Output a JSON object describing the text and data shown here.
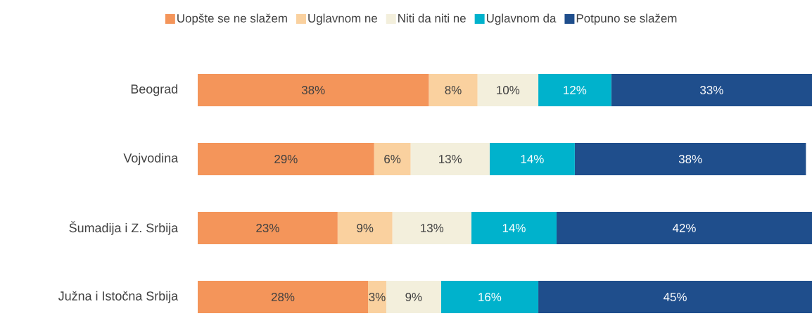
{
  "chart_data": {
    "type": "bar",
    "orientation": "horizontal",
    "stacked": true,
    "legend": "top",
    "categories": [
      "Beograd",
      "Vojvodina",
      "Šumadija i Z. Srbija",
      "Južna i Istočna Srbija"
    ],
    "series": [
      {
        "name": "Uopšte se ne slažem",
        "color": "#f4955a",
        "values": [
          38,
          29,
          23,
          28
        ],
        "value_labels": [
          "38%",
          "29%",
          "23%",
          "28%"
        ]
      },
      {
        "name": "Uglavnom ne",
        "color": "#fad19f",
        "values": [
          8,
          6,
          9,
          3
        ],
        "value_labels": [
          "8%",
          "6%",
          "9%",
          "3%"
        ]
      },
      {
        "name": "Niti da niti ne",
        "color": "#f3efdc",
        "values": [
          10,
          13,
          13,
          9
        ],
        "value_labels": [
          "10%",
          "13%",
          "13%",
          "9%"
        ]
      },
      {
        "name": "Uglavnom da",
        "color": "#00b2cc",
        "values": [
          12,
          14,
          14,
          16
        ],
        "value_labels": [
          "12%",
          "14%",
          "14%",
          "16%"
        ]
      },
      {
        "name": "Potpuno se slažem",
        "color": "#1f4e8c",
        "values": [
          33,
          38,
          42,
          45
        ],
        "value_labels": [
          "33%",
          "38%",
          "42%",
          "45%"
        ]
      }
    ]
  }
}
